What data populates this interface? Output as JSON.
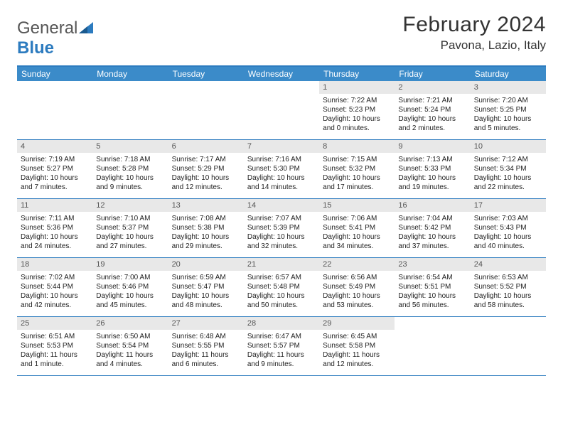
{
  "brand": {
    "text1": "General",
    "text2": "Blue"
  },
  "title": "February 2024",
  "location": "Pavona, Lazio, Italy",
  "colors": {
    "header_bar": "#3b8bc9",
    "border": "#2c7bbf",
    "daynum_bg": "#e8e8e8",
    "text": "#222222"
  },
  "dow": [
    "Sunday",
    "Monday",
    "Tuesday",
    "Wednesday",
    "Thursday",
    "Friday",
    "Saturday"
  ],
  "weeks": [
    [
      {
        "n": "",
        "sr": "",
        "ss": "",
        "dl": ""
      },
      {
        "n": "",
        "sr": "",
        "ss": "",
        "dl": ""
      },
      {
        "n": "",
        "sr": "",
        "ss": "",
        "dl": ""
      },
      {
        "n": "",
        "sr": "",
        "ss": "",
        "dl": ""
      },
      {
        "n": "1",
        "sr": "Sunrise: 7:22 AM",
        "ss": "Sunset: 5:23 PM",
        "dl": "Daylight: 10 hours and 0 minutes."
      },
      {
        "n": "2",
        "sr": "Sunrise: 7:21 AM",
        "ss": "Sunset: 5:24 PM",
        "dl": "Daylight: 10 hours and 2 minutes."
      },
      {
        "n": "3",
        "sr": "Sunrise: 7:20 AM",
        "ss": "Sunset: 5:25 PM",
        "dl": "Daylight: 10 hours and 5 minutes."
      }
    ],
    [
      {
        "n": "4",
        "sr": "Sunrise: 7:19 AM",
        "ss": "Sunset: 5:27 PM",
        "dl": "Daylight: 10 hours and 7 minutes."
      },
      {
        "n": "5",
        "sr": "Sunrise: 7:18 AM",
        "ss": "Sunset: 5:28 PM",
        "dl": "Daylight: 10 hours and 9 minutes."
      },
      {
        "n": "6",
        "sr": "Sunrise: 7:17 AM",
        "ss": "Sunset: 5:29 PM",
        "dl": "Daylight: 10 hours and 12 minutes."
      },
      {
        "n": "7",
        "sr": "Sunrise: 7:16 AM",
        "ss": "Sunset: 5:30 PM",
        "dl": "Daylight: 10 hours and 14 minutes."
      },
      {
        "n": "8",
        "sr": "Sunrise: 7:15 AM",
        "ss": "Sunset: 5:32 PM",
        "dl": "Daylight: 10 hours and 17 minutes."
      },
      {
        "n": "9",
        "sr": "Sunrise: 7:13 AM",
        "ss": "Sunset: 5:33 PM",
        "dl": "Daylight: 10 hours and 19 minutes."
      },
      {
        "n": "10",
        "sr": "Sunrise: 7:12 AM",
        "ss": "Sunset: 5:34 PM",
        "dl": "Daylight: 10 hours and 22 minutes."
      }
    ],
    [
      {
        "n": "11",
        "sr": "Sunrise: 7:11 AM",
        "ss": "Sunset: 5:36 PM",
        "dl": "Daylight: 10 hours and 24 minutes."
      },
      {
        "n": "12",
        "sr": "Sunrise: 7:10 AM",
        "ss": "Sunset: 5:37 PM",
        "dl": "Daylight: 10 hours and 27 minutes."
      },
      {
        "n": "13",
        "sr": "Sunrise: 7:08 AM",
        "ss": "Sunset: 5:38 PM",
        "dl": "Daylight: 10 hours and 29 minutes."
      },
      {
        "n": "14",
        "sr": "Sunrise: 7:07 AM",
        "ss": "Sunset: 5:39 PM",
        "dl": "Daylight: 10 hours and 32 minutes."
      },
      {
        "n": "15",
        "sr": "Sunrise: 7:06 AM",
        "ss": "Sunset: 5:41 PM",
        "dl": "Daylight: 10 hours and 34 minutes."
      },
      {
        "n": "16",
        "sr": "Sunrise: 7:04 AM",
        "ss": "Sunset: 5:42 PM",
        "dl": "Daylight: 10 hours and 37 minutes."
      },
      {
        "n": "17",
        "sr": "Sunrise: 7:03 AM",
        "ss": "Sunset: 5:43 PM",
        "dl": "Daylight: 10 hours and 40 minutes."
      }
    ],
    [
      {
        "n": "18",
        "sr": "Sunrise: 7:02 AM",
        "ss": "Sunset: 5:44 PM",
        "dl": "Daylight: 10 hours and 42 minutes."
      },
      {
        "n": "19",
        "sr": "Sunrise: 7:00 AM",
        "ss": "Sunset: 5:46 PM",
        "dl": "Daylight: 10 hours and 45 minutes."
      },
      {
        "n": "20",
        "sr": "Sunrise: 6:59 AM",
        "ss": "Sunset: 5:47 PM",
        "dl": "Daylight: 10 hours and 48 minutes."
      },
      {
        "n": "21",
        "sr": "Sunrise: 6:57 AM",
        "ss": "Sunset: 5:48 PM",
        "dl": "Daylight: 10 hours and 50 minutes."
      },
      {
        "n": "22",
        "sr": "Sunrise: 6:56 AM",
        "ss": "Sunset: 5:49 PM",
        "dl": "Daylight: 10 hours and 53 minutes."
      },
      {
        "n": "23",
        "sr": "Sunrise: 6:54 AM",
        "ss": "Sunset: 5:51 PM",
        "dl": "Daylight: 10 hours and 56 minutes."
      },
      {
        "n": "24",
        "sr": "Sunrise: 6:53 AM",
        "ss": "Sunset: 5:52 PM",
        "dl": "Daylight: 10 hours and 58 minutes."
      }
    ],
    [
      {
        "n": "25",
        "sr": "Sunrise: 6:51 AM",
        "ss": "Sunset: 5:53 PM",
        "dl": "Daylight: 11 hours and 1 minute."
      },
      {
        "n": "26",
        "sr": "Sunrise: 6:50 AM",
        "ss": "Sunset: 5:54 PM",
        "dl": "Daylight: 11 hours and 4 minutes."
      },
      {
        "n": "27",
        "sr": "Sunrise: 6:48 AM",
        "ss": "Sunset: 5:55 PM",
        "dl": "Daylight: 11 hours and 6 minutes."
      },
      {
        "n": "28",
        "sr": "Sunrise: 6:47 AM",
        "ss": "Sunset: 5:57 PM",
        "dl": "Daylight: 11 hours and 9 minutes."
      },
      {
        "n": "29",
        "sr": "Sunrise: 6:45 AM",
        "ss": "Sunset: 5:58 PM",
        "dl": "Daylight: 11 hours and 12 minutes."
      },
      {
        "n": "",
        "sr": "",
        "ss": "",
        "dl": ""
      },
      {
        "n": "",
        "sr": "",
        "ss": "",
        "dl": ""
      }
    ]
  ]
}
